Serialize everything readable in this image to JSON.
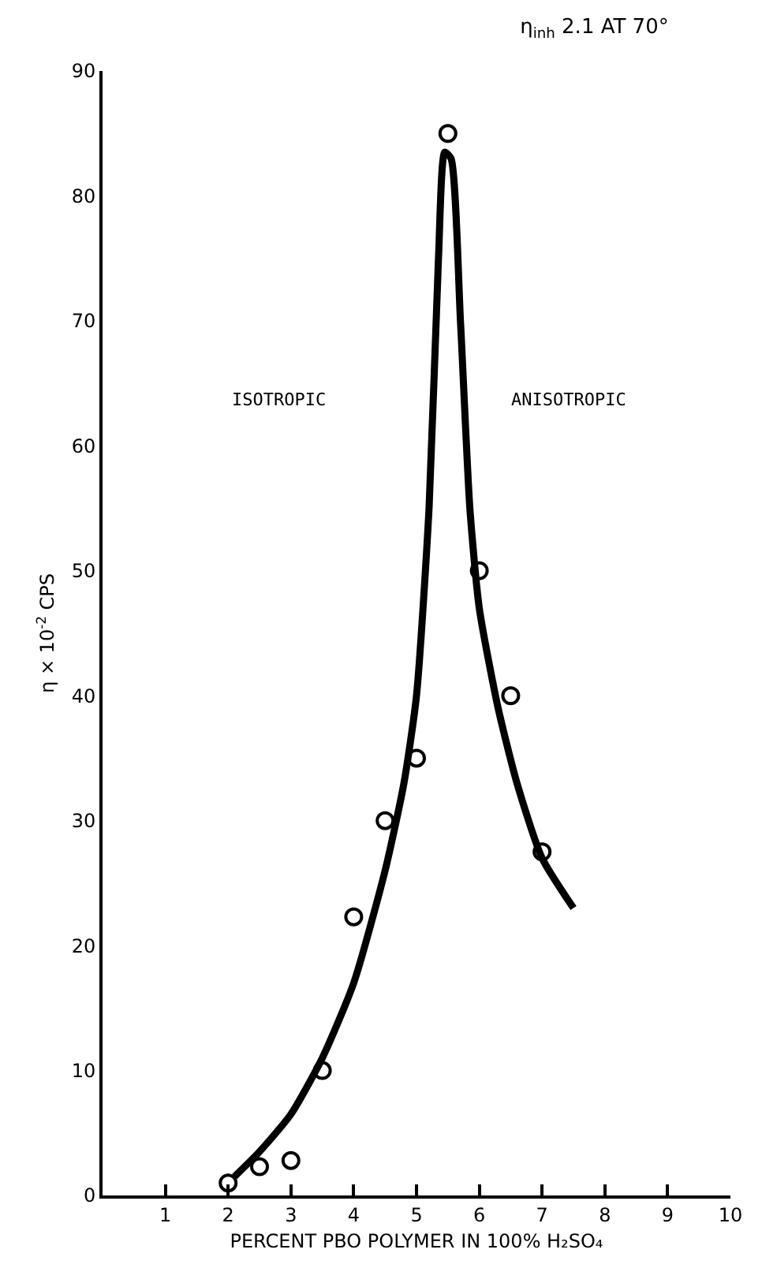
{
  "chart_data": {
    "type": "scatter",
    "title": "η$_{inh}$ 2.1 AT 70°",
    "xlabel": "PERCENT PBO POLYMER IN 100% H₂SO₄",
    "ylabel": "η × 10$^{-2}$ CPS",
    "annotations": [
      "ISOTROPIC",
      "ANISOTROPIC"
    ],
    "xlim": [
      0,
      10
    ],
    "xticks": [
      1,
      2,
      3,
      4,
      5,
      6,
      7,
      8,
      9,
      10
    ],
    "ylim": [
      0,
      90
    ],
    "yticks": [
      0,
      10,
      20,
      30,
      40,
      50,
      60,
      70,
      80,
      90
    ],
    "grid": false,
    "series": [
      {
        "type": "scatter",
        "marker": "circle",
        "color": "#000000",
        "x": [
          2,
          2.5,
          3,
          3.5,
          4,
          4.5,
          5,
          5.5,
          6,
          6.5,
          7
        ],
        "values": [
          1,
          2.3,
          2.8,
          10,
          22.3,
          30,
          35,
          85,
          50,
          40,
          27.5
        ]
      },
      {
        "type": "line",
        "marker": "none",
        "line_style": "solid",
        "color": "#000000",
        "x": [
          2.1,
          2.5,
          3,
          3.5,
          4,
          4.5,
          4.8,
          5,
          5.2,
          5.35,
          5.45,
          5.55,
          5.7,
          5.85,
          6,
          6.3,
          6.6,
          7,
          7.5
        ],
        "values": [
          1.5,
          3.5,
          6.5,
          11,
          17,
          26,
          33,
          40,
          55,
          75,
          83.5,
          83,
          70,
          55,
          47,
          39,
          33,
          27,
          23
        ]
      }
    ]
  }
}
